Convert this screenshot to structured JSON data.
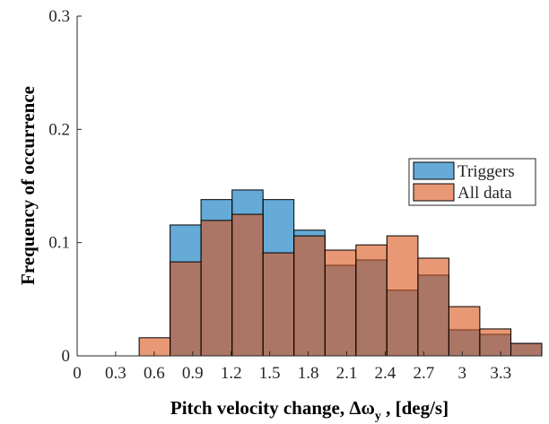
{
  "chart_data": {
    "type": "histogram",
    "xlabel": [
      "Pitch velocity change, Δω",
      "y",
      " , [deg/s]"
    ],
    "ylabel": "Frequency of occurrence",
    "bins": [
      0,
      0.241,
      0.483,
      0.724,
      0.965,
      1.207,
      1.448,
      1.689,
      1.931,
      2.172,
      2.413,
      2.655,
      2.896,
      3.137,
      3.379,
      3.62
    ],
    "series": [
      {
        "name": "Triggers",
        "color": "#0072bd",
        "values": [
          0,
          0,
          0,
          0.1156,
          0.138,
          0.1465,
          0.138,
          0.111,
          0.08,
          0.0847,
          0.058,
          0.0713,
          0.023,
          0.019,
          0.011
        ]
      },
      {
        "name": "All data",
        "color": "#d95319",
        "values": [
          0,
          0,
          0.016,
          0.083,
          0.1196,
          0.125,
          0.091,
          0.106,
          0.0934,
          0.098,
          0.106,
          0.0863,
          0.0435,
          0.0238,
          0.011
        ]
      }
    ],
    "face_alpha": 0.6,
    "xlim": [
      0,
      3.62
    ],
    "xticks": [
      0,
      0.3,
      0.6,
      0.9,
      1.2,
      1.5,
      1.8,
      2.1,
      2.4,
      2.7,
      3,
      3.3
    ],
    "ylim": [
      0,
      0.3
    ],
    "yticks": [
      0,
      0.1,
      0.2,
      0.3
    ],
    "legend": "east"
  }
}
